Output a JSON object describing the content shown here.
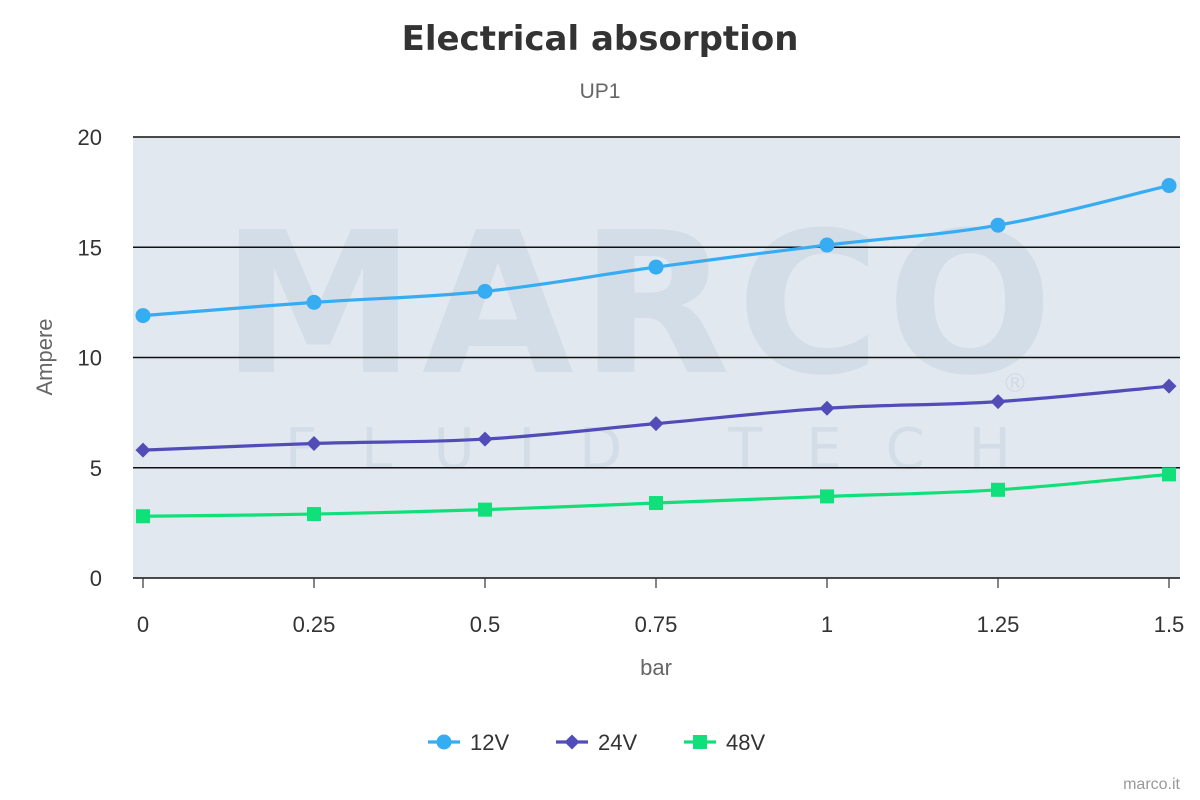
{
  "chart_data": {
    "type": "line",
    "title": "Electrical absorption",
    "subtitle": "UP1",
    "xlabel": "bar",
    "ylabel": "Ampere",
    "x": [
      0,
      0.25,
      0.5,
      0.75,
      1,
      1.25,
      1.5
    ],
    "x_tick_labels": [
      "0",
      "0.25",
      "0.5",
      "0.75",
      "1",
      "1.25",
      "1.5"
    ],
    "xlim": [
      0,
      1.5
    ],
    "ylim": [
      0,
      20
    ],
    "y_ticks": [
      0,
      5,
      10,
      15,
      20
    ],
    "y_tick_labels": [
      "0",
      "5",
      "10",
      "15",
      "20"
    ],
    "grid": true,
    "legend_position": "bottom-center",
    "series": [
      {
        "name": "12V",
        "color": "#36acf2",
        "marker": "circle",
        "values": [
          11.9,
          12.5,
          13.0,
          14.1,
          15.1,
          16.0,
          17.8
        ]
      },
      {
        "name": "24V",
        "color": "#524cb8",
        "marker": "diamond",
        "values": [
          5.8,
          6.1,
          6.3,
          7.0,
          7.7,
          8.0,
          8.7
        ]
      },
      {
        "name": "48V",
        "color": "#10e07a",
        "marker": "square",
        "values": [
          2.8,
          2.9,
          3.1,
          3.4,
          3.7,
          4.0,
          4.7
        ]
      }
    ],
    "plot_background": "#e1e8ef",
    "watermark": {
      "main": "MARCO",
      "sub": "FLUID TECH",
      "mark": "®"
    },
    "credit": "marco.it"
  }
}
